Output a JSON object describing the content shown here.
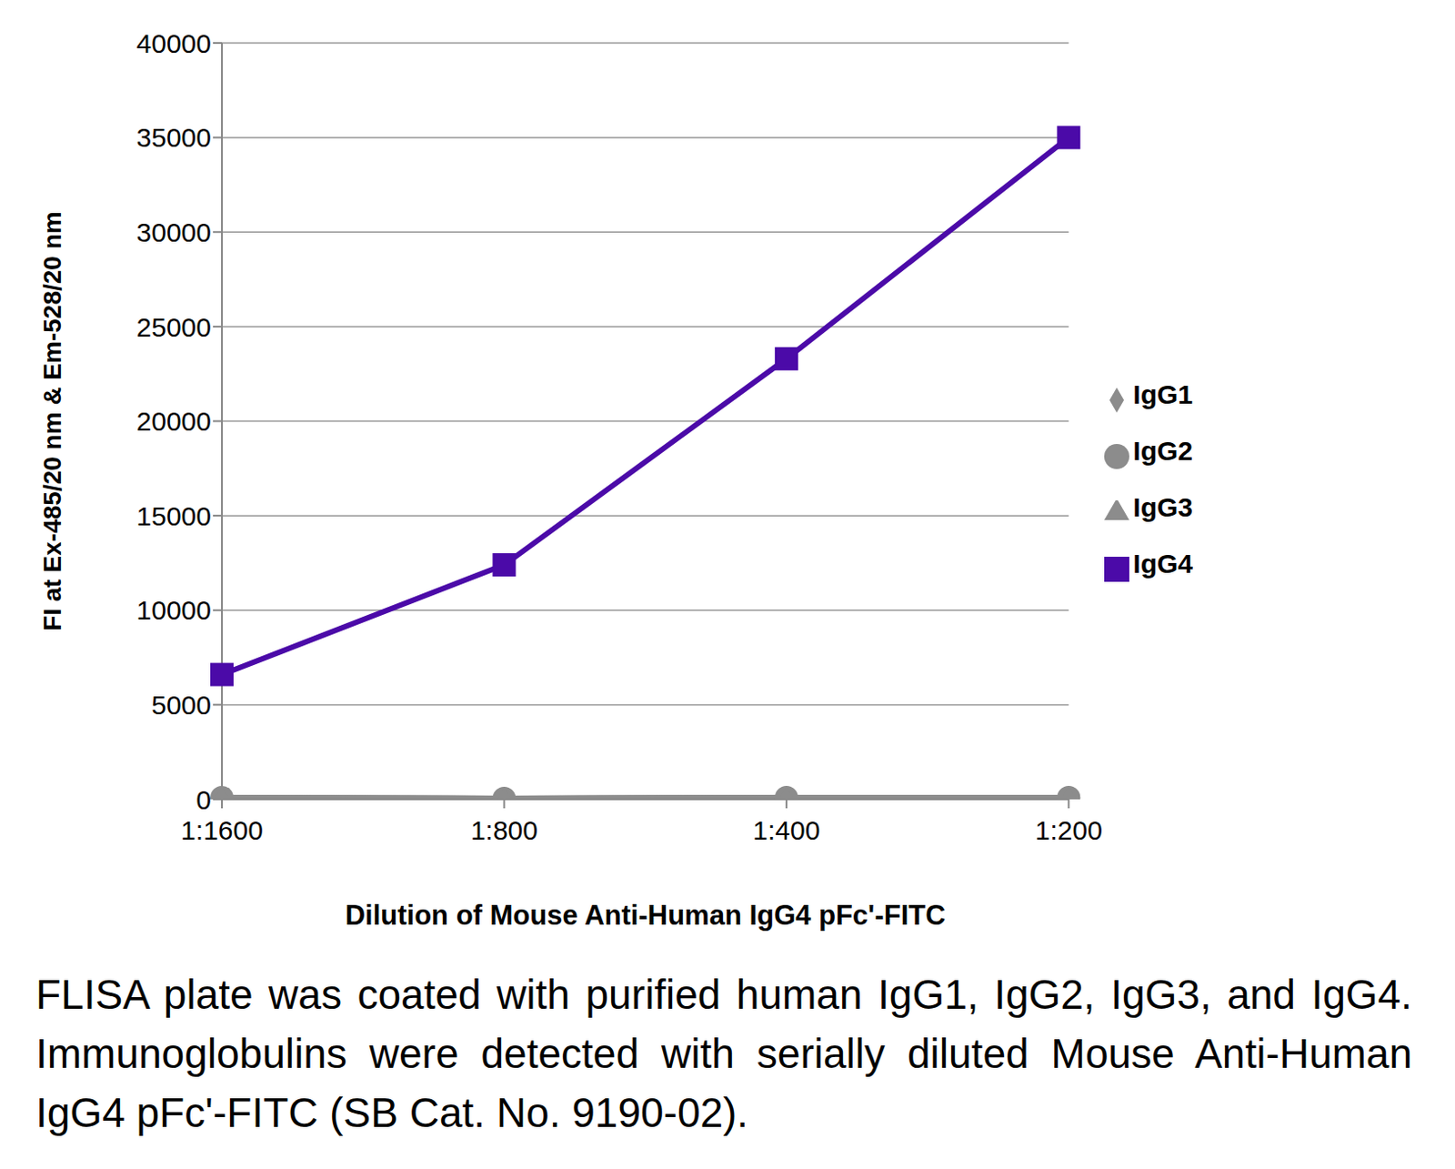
{
  "chart_data": {
    "type": "line",
    "x_label": "Dilution of Mouse Anti-Human IgG4 pFc'-FITC",
    "y_label": "FI at Ex-485/20 nm & Em-528/20 nm",
    "categories": [
      "1:1600",
      "1:800",
      "1:400",
      "1:200"
    ],
    "series": [
      {
        "name": "IgG1",
        "color": "#8c8c8c",
        "marker": "diamond",
        "values": [
          100,
          50,
          100,
          100
        ]
      },
      {
        "name": "IgG2",
        "color": "#8c8c8c",
        "marker": "circle",
        "values": [
          100,
          50,
          100,
          100
        ]
      },
      {
        "name": "IgG3",
        "color": "#8c8c8c",
        "marker": "triangle",
        "values": [
          100,
          50,
          100,
          100
        ]
      },
      {
        "name": "IgG4",
        "color": "#4b0aa8",
        "marker": "square",
        "values": [
          6600,
          12400,
          23300,
          35000
        ]
      }
    ],
    "ylim": [
      0,
      40000
    ],
    "yticks": [
      0,
      5000,
      10000,
      15000,
      20000,
      25000,
      30000,
      35000,
      40000
    ],
    "grid": true,
    "legend": "right",
    "annotation": "FLISA plate was coated with purified human IgG1, IgG2, IgG3, and IgG4.  Immunoglobulins were detected with serially diluted Mouse Anti-Human IgG4 pFc'-FITC (SB Cat. No. 9190-02)."
  }
}
